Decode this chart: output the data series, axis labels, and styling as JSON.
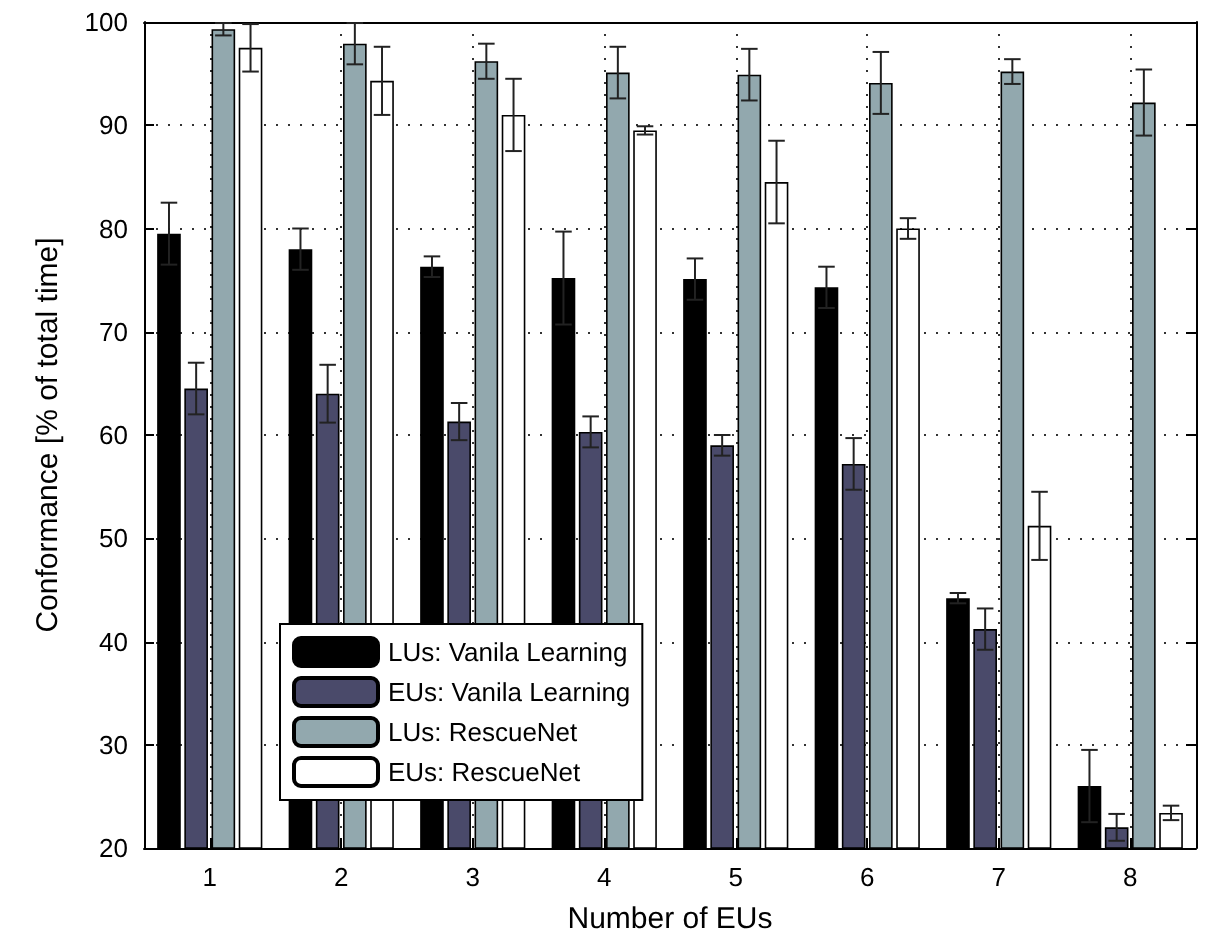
{
  "chart_data": {
    "type": "bar",
    "xlabel": "Number of EUs",
    "ylabel": "Conformance [% of total time]",
    "categories": [
      "1",
      "2",
      "3",
      "4",
      "5",
      "6",
      "7",
      "8"
    ],
    "series": [
      {
        "name": "LUs: Vanila Learning",
        "color": "#000000",
        "values": [
          79.5,
          78,
          76.3,
          75.2,
          75.1,
          74.3,
          44.2,
          26
        ],
        "errors": [
          3,
          2,
          1,
          4.5,
          2,
          2,
          0.5,
          3.5
        ]
      },
      {
        "name": "EUs: Vanila Learning",
        "color": "#4a4a6a",
        "values": [
          64.5,
          64,
          61.3,
          60.3,
          59,
          57.2,
          41.2,
          22
        ],
        "errors": [
          2.5,
          2.8,
          1.8,
          1.5,
          1,
          2.5,
          2,
          1.3
        ]
      },
      {
        "name": "LUs: RescueNet",
        "color": "#92a8ae",
        "values": [
          99.3,
          97.9,
          96.2,
          95.1,
          94.9,
          94.1,
          95.2,
          92.2
        ],
        "errors": [
          0.6,
          2,
          1.7,
          2.5,
          2.5,
          3,
          1.2,
          3.2
        ]
      },
      {
        "name": "EUs: RescueNet",
        "color": "#ffffff",
        "values": [
          97.5,
          94.3,
          91,
          89.5,
          84.5,
          80,
          51.2,
          23.4
        ],
        "errors": [
          2.3,
          3.3,
          3.5,
          0.4,
          4,
          1,
          3.3,
          0.7
        ]
      }
    ],
    "ylim": [
      20,
      100
    ],
    "yticks": [
      20,
      30,
      40,
      50,
      60,
      70,
      80,
      90,
      100
    ],
    "grid": true,
    "legend": "bottom left"
  }
}
